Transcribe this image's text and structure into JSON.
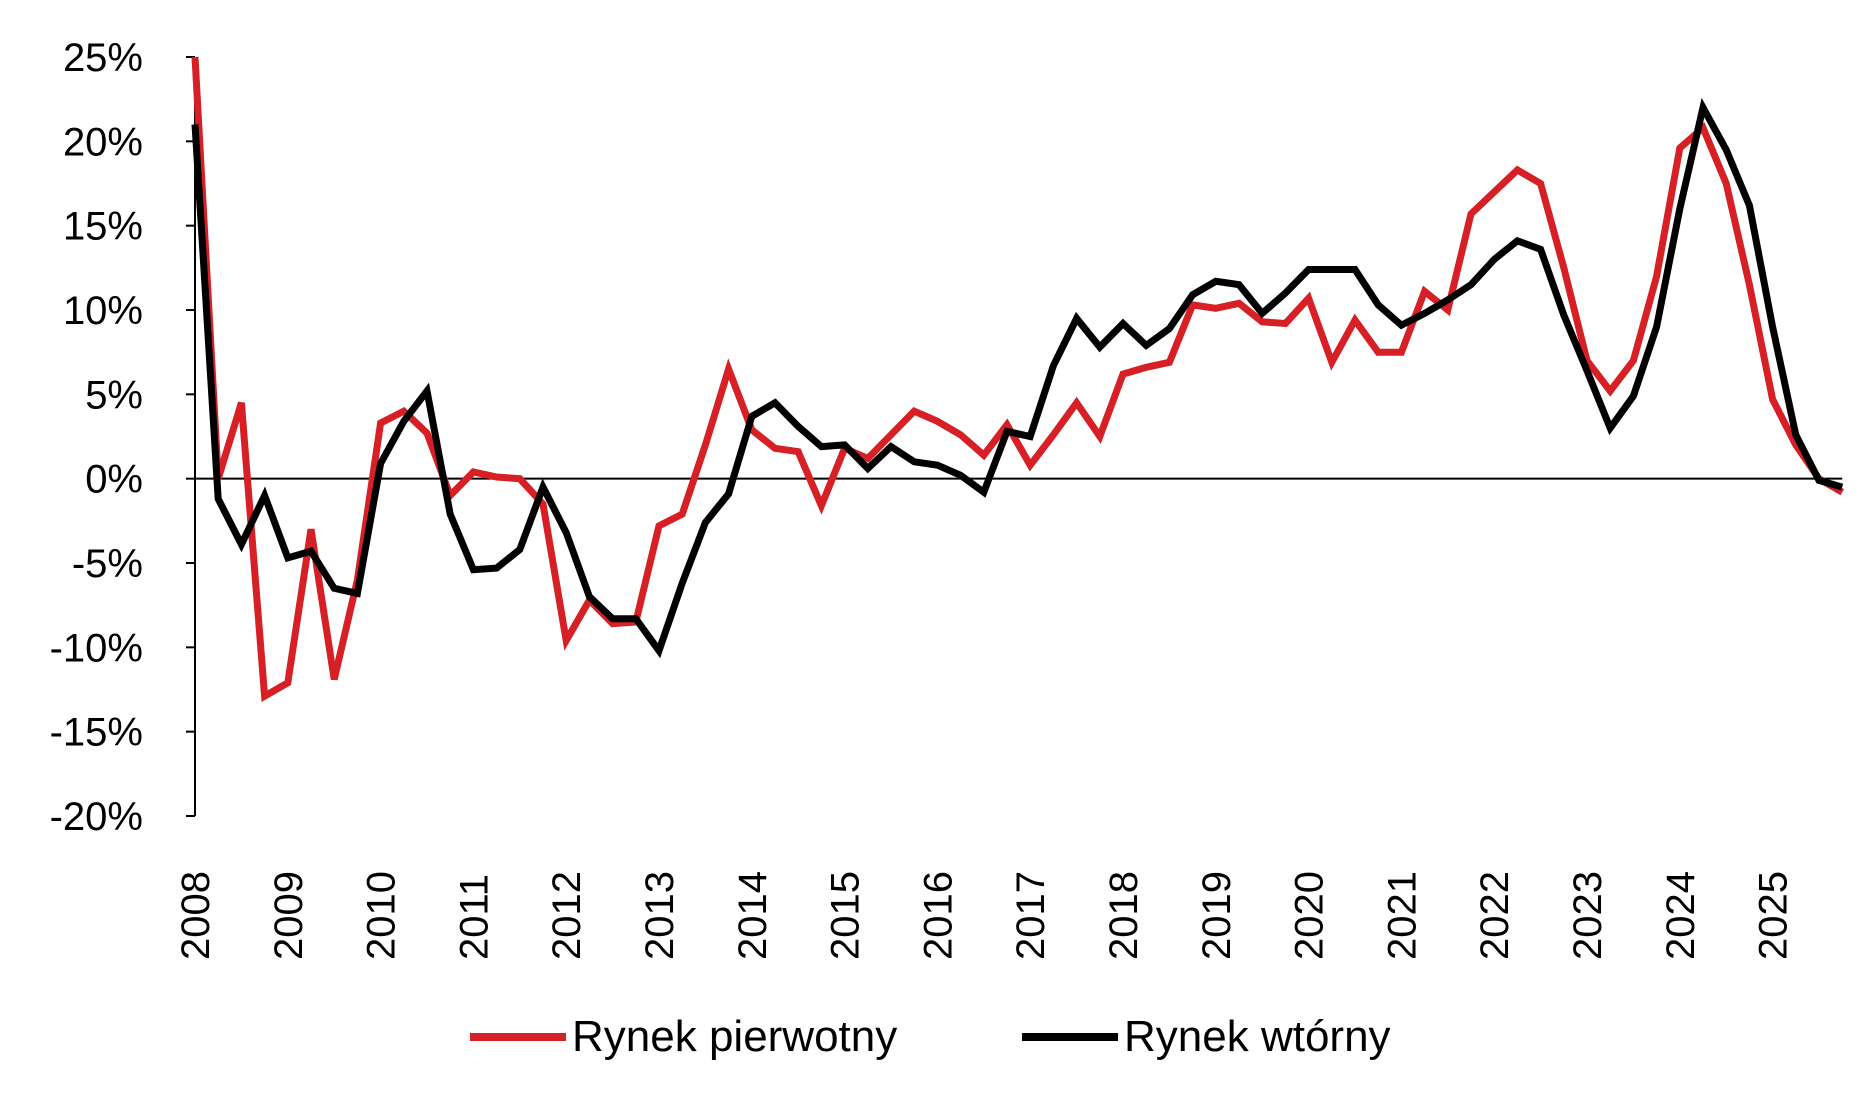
{
  "chart_data": {
    "type": "line",
    "title": "",
    "xlabel": "",
    "ylabel": "",
    "ylim": [
      -20,
      25
    ],
    "y_ticks": [
      "25%",
      "20%",
      "15%",
      "10%",
      "5%",
      "0%",
      "-5%",
      "-10%",
      "-15%",
      "-20%"
    ],
    "y_tick_values": [
      25,
      20,
      15,
      10,
      5,
      0,
      -5,
      -10,
      -15,
      -20
    ],
    "x_tick_labels": [
      "2008",
      "2009",
      "2010",
      "2011",
      "2012",
      "2013",
      "2014",
      "2015",
      "2016",
      "2017",
      "2018",
      "2019",
      "2020",
      "2021",
      "2022",
      "2023",
      "2024",
      "2025"
    ],
    "x": [
      "2008Q1",
      "2008Q2",
      "2008Q3",
      "2008Q4",
      "2009Q1",
      "2009Q2",
      "2009Q3",
      "2009Q4",
      "2010Q1",
      "2010Q2",
      "2010Q3",
      "2010Q4",
      "2011Q1",
      "2011Q2",
      "2011Q3",
      "2011Q4",
      "2012Q1",
      "2012Q2",
      "2012Q3",
      "2012Q4",
      "2013Q1",
      "2013Q2",
      "2013Q3",
      "2013Q4",
      "2014Q1",
      "2014Q2",
      "2014Q3",
      "2014Q4",
      "2015Q1",
      "2015Q2",
      "2015Q3",
      "2015Q4",
      "2016Q1",
      "2016Q2",
      "2016Q3",
      "2016Q4",
      "2017Q1",
      "2017Q2",
      "2017Q3",
      "2017Q4",
      "2018Q1",
      "2018Q2",
      "2018Q3",
      "2018Q4",
      "2019Q1",
      "2019Q2",
      "2019Q3",
      "2019Q4",
      "2020Q1",
      "2020Q2",
      "2020Q3",
      "2020Q4",
      "2021Q1",
      "2021Q2",
      "2021Q3",
      "2021Q4",
      "2022Q1",
      "2022Q2",
      "2022Q3",
      "2022Q4",
      "2023Q1",
      "2023Q2",
      "2023Q3",
      "2023Q4",
      "2024Q1",
      "2024Q2",
      "2024Q3",
      "2024Q4",
      "2025Q1",
      "2025Q2",
      "2025Q3",
      "2025Q4"
    ],
    "zero_line": true,
    "grid": false,
    "legend_position": "bottom",
    "series": [
      {
        "name": "Rynek pierwotny",
        "color": "#d71f26",
        "values": [
          25,
          0,
          4.5,
          -12.9,
          -12.1,
          -3,
          -11.9,
          -6,
          3.3,
          4,
          2.7,
          -1,
          0.4,
          0.1,
          0,
          -1.5,
          -9.6,
          -7.2,
          -8.6,
          -8.5,
          -2.8,
          -2.1,
          2,
          6.5,
          2.9,
          1.8,
          1.6,
          -1.6,
          1.8,
          1.2,
          2.6,
          4,
          3.4,
          2.6,
          1.4,
          3.2,
          0.8,
          2.6,
          4.5,
          2.5,
          6.2,
          6.6,
          6.9,
          10.3,
          10.1,
          10.4,
          9.3,
          9.2,
          10.7,
          6.9,
          9.4,
          7.5,
          7.5,
          11.1,
          10,
          15.7,
          17,
          18.3,
          17.5,
          12.5,
          7,
          5.2,
          7,
          12,
          19.6,
          20.8,
          17.5,
          11.5,
          4.7,
          2,
          0,
          -0.8
        ]
      },
      {
        "name": "Rynek wtórny",
        "color": "#000000",
        "values": [
          21,
          -1.2,
          -3.9,
          -1,
          -4.7,
          -4.3,
          -6.5,
          -6.8,
          0.9,
          3.4,
          5.2,
          -2.1,
          -5.4,
          -5.3,
          -4.2,
          -0.5,
          -3.2,
          -7,
          -8.3,
          -8.3,
          -10.2,
          -6.2,
          -2.6,
          -0.9,
          3.7,
          4.5,
          3.1,
          1.9,
          2,
          0.6,
          1.9,
          1,
          0.8,
          0.2,
          -0.8,
          2.8,
          2.5,
          6.7,
          9.5,
          7.8,
          9.2,
          7.9,
          8.9,
          10.9,
          11.7,
          11.5,
          9.8,
          11,
          12.4,
          12.4,
          12.4,
          10.3,
          9.1,
          9.8,
          10.6,
          11.5,
          13,
          14.1,
          13.6,
          9.7,
          6.4,
          3,
          4.9,
          9,
          16,
          22,
          19.5,
          16.2,
          9,
          2.6,
          -0.1,
          -0.5
        ]
      }
    ]
  }
}
